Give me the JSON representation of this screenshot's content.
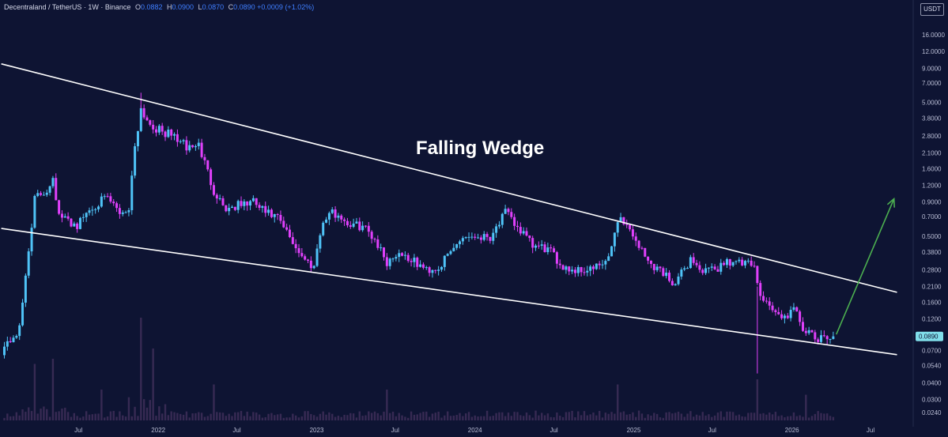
{
  "header": {
    "symbol": "Decentraland / TetherUS · 1W · Binance",
    "open_label": "O",
    "open_value": "0.0882",
    "high_label": "H",
    "high_value": "0.0900",
    "low_label": "L",
    "low_value": "0.0870",
    "close_label": "C",
    "close_value": "0.0890",
    "change": "+0.0009 (+1.02%)"
  },
  "currency_badge": "USDT",
  "annotation_title": "Falling Wedge",
  "last_price_label": "0.0890",
  "colors": {
    "background": "#0e1433",
    "up": "#4fc3f7",
    "down": "#e040fb",
    "wedge_lines": "#ffffff",
    "arrow": "#4caf50",
    "price_badge": "#80deea"
  },
  "chart_data": {
    "type": "candlestick",
    "scale": "log",
    "y_axis_ticks": [
      "16.0000",
      "12.0000",
      "9.0000",
      "7.0000",
      "5.0000",
      "3.8000",
      "2.8000",
      "2.1000",
      "1.6000",
      "1.2000",
      "0.9000",
      "0.7000",
      "0.5000",
      "0.3800",
      "0.2800",
      "0.2100",
      "0.1600",
      "0.1200",
      "0.0890",
      "0.0700",
      "0.0540",
      "0.0400",
      "0.0300",
      "0.0240"
    ],
    "x_axis_ticks": [
      "Jul",
      "2022",
      "Jul",
      "2023",
      "Jul",
      "2024",
      "Jul",
      "2025",
      "Jul",
      "2026",
      "Jul"
    ],
    "x_tick_dates": [
      "2021-07-01",
      "2022-01-01",
      "2022-07-01",
      "2023-01-01",
      "2023-07-01",
      "2024-01-01",
      "2024-07-01",
      "2025-01-01",
      "2025-07-01",
      "2026-01-01",
      "2026-07-01"
    ],
    "close_path": [
      [
        "2021-01-04",
        0.07
      ],
      [
        "2021-02-15",
        0.1
      ],
      [
        "2021-03-08",
        0.4
      ],
      [
        "2021-03-22",
        0.95
      ],
      [
        "2021-04-19",
        1.1
      ],
      [
        "2021-05-03",
        1.4
      ],
      [
        "2021-05-17",
        0.7
      ],
      [
        "2021-06-07",
        0.65
      ],
      [
        "2021-06-28",
        0.6
      ],
      [
        "2021-07-19",
        0.75
      ],
      [
        "2021-08-16",
        0.9
      ],
      [
        "2021-09-06",
        0.95
      ],
      [
        "2021-10-04",
        0.75
      ],
      [
        "2021-10-25",
        0.8
      ],
      [
        "2021-11-08",
        2.4
      ],
      [
        "2021-11-22",
        4.5
      ],
      [
        "2021-12-06",
        3.7
      ],
      [
        "2021-12-20",
        3.3
      ],
      [
        "2022-01-10",
        3.0
      ],
      [
        "2022-02-07",
        2.8
      ],
      [
        "2022-03-07",
        2.3
      ],
      [
        "2022-04-04",
        2.4
      ],
      [
        "2022-05-09",
        1.1
      ],
      [
        "2022-06-06",
        0.8
      ],
      [
        "2022-07-04",
        0.85
      ],
      [
        "2022-08-08",
        0.9
      ],
      [
        "2022-09-05",
        0.75
      ],
      [
        "2022-10-03",
        0.68
      ],
      [
        "2022-11-07",
        0.45
      ],
      [
        "2022-12-05",
        0.33
      ],
      [
        "2022-12-26",
        0.3
      ],
      [
        "2023-01-09",
        0.55
      ],
      [
        "2023-01-30",
        0.75
      ],
      [
        "2023-02-20",
        0.72
      ],
      [
        "2023-03-20",
        0.6
      ],
      [
        "2023-04-17",
        0.6
      ],
      [
        "2023-05-15",
        0.48
      ],
      [
        "2023-06-12",
        0.32
      ],
      [
        "2023-07-10",
        0.38
      ],
      [
        "2023-08-14",
        0.32
      ],
      [
        "2023-09-11",
        0.28
      ],
      [
        "2023-10-09",
        0.29
      ],
      [
        "2023-11-06",
        0.38
      ],
      [
        "2023-12-04",
        0.5
      ],
      [
        "2024-01-01",
        0.5
      ],
      [
        "2024-02-05",
        0.5
      ],
      [
        "2024-03-11",
        0.75
      ],
      [
        "2024-04-15",
        0.55
      ],
      [
        "2024-05-13",
        0.42
      ],
      [
        "2024-06-17",
        0.4
      ],
      [
        "2024-07-15",
        0.31
      ],
      [
        "2024-08-12",
        0.28
      ],
      [
        "2024-09-09",
        0.28
      ],
      [
        "2024-10-07",
        0.29
      ],
      [
        "2024-11-04",
        0.33
      ],
      [
        "2024-11-25",
        0.68
      ],
      [
        "2024-12-09",
        0.65
      ],
      [
        "2025-01-06",
        0.47
      ],
      [
        "2025-02-03",
        0.32
      ],
      [
        "2025-03-03",
        0.28
      ],
      [
        "2025-04-07",
        0.22
      ],
      [
        "2025-05-12",
        0.34
      ],
      [
        "2025-06-09",
        0.27
      ],
      [
        "2025-07-07",
        0.28
      ],
      [
        "2025-08-04",
        0.33
      ],
      [
        "2025-09-08",
        0.31
      ],
      [
        "2025-10-06",
        0.3
      ],
      [
        "2025-10-13",
        0.21
      ],
      [
        "2025-11-10",
        0.15
      ],
      [
        "2025-12-08",
        0.12
      ],
      [
        "2026-01-05",
        0.14
      ],
      [
        "2026-02-02",
        0.095
      ],
      [
        "2026-03-02",
        0.083
      ],
      [
        "2026-04-06",
        0.089
      ]
    ],
    "extremes": {
      "max_high": [
        "2021-11-22",
        5.9
      ],
      "min_low": [
        "2025-10-13",
        0.047
      ]
    },
    "last_close": 0.089,
    "upper_wedge_line": [
      [
        "2021-01-04",
        9.7
      ],
      [
        "2026-08-31",
        0.19
      ]
    ],
    "lower_wedge_line": [
      [
        "2021-01-04",
        0.57
      ],
      [
        "2026-08-31",
        0.065
      ]
    ],
    "projection_arrow": [
      [
        "2026-04-13",
        0.092
      ],
      [
        "2026-08-24",
        0.95
      ]
    ],
    "volume": {
      "unit": "relative",
      "baseline": 0.06,
      "peaks": [
        [
          "2021-03-22",
          0.55
        ],
        [
          "2021-05-03",
          0.6
        ],
        [
          "2021-08-23",
          0.3
        ],
        [
          "2021-11-22",
          1.0
        ],
        [
          "2021-12-20",
          0.7
        ],
        [
          "2022-05-09",
          0.35
        ],
        [
          "2023-06-12",
          0.3
        ],
        [
          "2024-11-25",
          0.35
        ],
        [
          "2025-10-13",
          0.4
        ],
        [
          "2026-02-02",
          0.25
        ]
      ]
    }
  }
}
